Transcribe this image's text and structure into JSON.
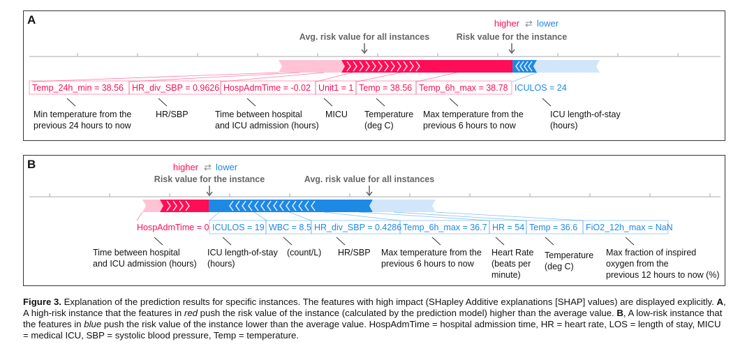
{
  "panelA": {
    "label": "A",
    "legend": {
      "higher": "higher",
      "arrow": "⇄",
      "lower": "lower"
    },
    "avg_label": "Avg. risk value for all instances",
    "inst_label": "Risk value for the instance",
    "features": [
      {
        "text": "Temp_24h_min = 38.56",
        "color": "red",
        "desc": [
          "Min temperature from the",
          "previous 24 hours to now"
        ]
      },
      {
        "text": "HR_div_SBP = 0.9626",
        "color": "red",
        "desc": [
          "HR/SBP"
        ]
      },
      {
        "text": "HospAdmTime = -0.02",
        "color": "red",
        "desc": [
          "Time between hospital",
          "and ICU admission (hours)"
        ]
      },
      {
        "text": "Unit1 = 1",
        "color": "red",
        "desc": [
          "MICU"
        ]
      },
      {
        "text": "Temp = 38.56",
        "color": "red",
        "desc": [
          "Temperature",
          "(deg C)"
        ]
      },
      {
        "text": "Temp_6h_max = 38.78",
        "color": "red",
        "desc": [
          "Max temperature from the",
          "previous 6 hours to now"
        ]
      },
      {
        "text": "ICULOS = 24",
        "color": "blue",
        "desc": [
          "ICU length-of-stay",
          "(hours)"
        ]
      }
    ]
  },
  "panelB": {
    "label": "B",
    "legend": {
      "higher": "higher",
      "arrow": "⇄",
      "lower": "lower"
    },
    "avg_label": "Avg. risk value for all instances",
    "inst_label": "Risk value for the instance",
    "features": [
      {
        "text": "HospAdmTime = 0",
        "color": "red",
        "desc": [
          "Time between hospital",
          "and ICU admission (hours)"
        ]
      },
      {
        "text": "ICULOS = 19",
        "color": "blue",
        "desc": [
          "ICU length-of-stay",
          "(hours)"
        ]
      },
      {
        "text": "WBC = 8.5",
        "color": "blue",
        "desc": [
          "(count/L)"
        ]
      },
      {
        "text": "HR_div_SBP = 0.4286",
        "color": "blue",
        "desc": [
          "HR/SBP"
        ]
      },
      {
        "text": "Temp_6h_max = 36.7",
        "color": "blue",
        "desc": [
          "Max temperature from the",
          "previous 6 hours to now"
        ]
      },
      {
        "text": "HR = 54",
        "color": "blue",
        "desc": [
          "Heart Rate",
          "(beats per",
          "minute)"
        ]
      },
      {
        "text": "Temp = 36.6",
        "color": "blue",
        "desc": [
          "Temperature",
          "(deg C)"
        ]
      },
      {
        "text": "FiO2_12h_max = NaN",
        "color": "blue",
        "desc": [
          "Max fraction of inspired",
          "oxygen from the",
          "previous 12 hours to now (%)"
        ]
      }
    ]
  },
  "caption": {
    "fig": "Figure 3.",
    "s1": " Explanation of the prediction results for specific instances. The features with high impact (SHapley Additive explanations [SHAP] values) are displayed explicitly. ",
    "a": "A",
    "s2": ", A high-risk instance that the features in ",
    "red": "red",
    "s3": " push the risk value of the instance (calculated by the prediction model) higher than the average value. ",
    "b": "B",
    "s4": ", A low-risk instance that the features in ",
    "blue": "blue",
    "s5": " push the risk value of the instance lower than the average value. HospAdmTime = hospital admission time, HR = heart rate, LOS = length of stay, MICU = medical ICU, SBP = systolic blood pressure, Temp = temperature."
  },
  "colors": {
    "red": "#ff0d57",
    "blue": "#1e88e5",
    "redLight": "#ffc3d5",
    "blueLight": "#d1e6fa"
  }
}
